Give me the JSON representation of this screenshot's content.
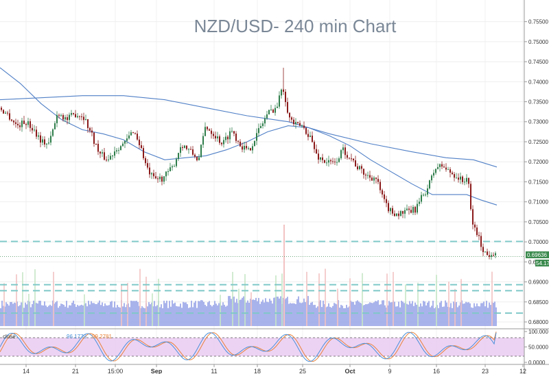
{
  "chart_data": {
    "type": "candlestick",
    "title": "NZD/USD- 240 min Chart",
    "price_axis": {
      "range": [
        0.68,
        0.7575
      ],
      "ticks": [
        "0.75500",
        "0.75000",
        "0.74500",
        "0.74000",
        "0.73500",
        "0.73000",
        "0.72500",
        "0.72000",
        "0.71500",
        "0.71000",
        "0.70500",
        "0.70000",
        "0.69500",
        "0.69000",
        "0.68500",
        "0.68000"
      ]
    },
    "current_price": "0.69636",
    "volume_badge": "54.17",
    "x_tick_labels": [
      {
        "label": "14",
        "bold": false
      },
      {
        "label": "21",
        "bold": false
      },
      {
        "label": "15:00",
        "bold": false
      },
      {
        "label": "Sep",
        "bold": true
      },
      {
        "label": "11",
        "bold": false
      },
      {
        "label": "18",
        "bold": false
      },
      {
        "label": "25",
        "bold": false
      },
      {
        "label": "Oct",
        "bold": true
      },
      {
        "label": "9",
        "bold": false
      },
      {
        "label": "16",
        "bold": false
      },
      {
        "label": "23",
        "bold": false
      },
      {
        "label": "12",
        "bold": false
      }
    ],
    "horizontal_levels": [
      0.7001,
      0.6893,
      0.6878,
      0.6822
    ],
    "price_path": [
      [
        0,
        0.7335
      ],
      [
        12,
        0.7318
      ],
      [
        25,
        0.729
      ],
      [
        38,
        0.73
      ],
      [
        50,
        0.728
      ],
      [
        62,
        0.725
      ],
      [
        72,
        0.7245
      ],
      [
        85,
        0.7325
      ],
      [
        98,
        0.7305
      ],
      [
        110,
        0.732
      ],
      [
        122,
        0.7315
      ],
      [
        135,
        0.7265
      ],
      [
        145,
        0.722
      ],
      [
        158,
        0.7205
      ],
      [
        170,
        0.7235
      ],
      [
        182,
        0.7245
      ],
      [
        195,
        0.728
      ],
      [
        205,
        0.724
      ],
      [
        215,
        0.718
      ],
      [
        225,
        0.7155
      ],
      [
        238,
        0.716
      ],
      [
        252,
        0.7185
      ],
      [
        265,
        0.7245
      ],
      [
        278,
        0.7225
      ],
      [
        290,
        0.7205
      ],
      [
        300,
        0.729
      ],
      [
        312,
        0.727
      ],
      [
        325,
        0.7245
      ],
      [
        338,
        0.728
      ],
      [
        350,
        0.7245
      ],
      [
        362,
        0.7225
      ],
      [
        375,
        0.727
      ],
      [
        390,
        0.732
      ],
      [
        405,
        0.734
      ],
      [
        412,
        0.7395
      ],
      [
        422,
        0.731
      ],
      [
        432,
        0.729
      ],
      [
        440,
        0.729
      ],
      [
        452,
        0.7265
      ],
      [
        462,
        0.7215
      ],
      [
        475,
        0.72
      ],
      [
        488,
        0.7195
      ],
      [
        500,
        0.723
      ],
      [
        512,
        0.721
      ],
      [
        522,
        0.7185
      ],
      [
        535,
        0.7165
      ],
      [
        548,
        0.716
      ],
      [
        560,
        0.71
      ],
      [
        570,
        0.7075
      ],
      [
        582,
        0.707
      ],
      [
        595,
        0.7075
      ],
      [
        605,
        0.708
      ],
      [
        615,
        0.711
      ],
      [
        625,
        0.714
      ],
      [
        635,
        0.7185
      ],
      [
        645,
        0.719
      ],
      [
        655,
        0.7175
      ],
      [
        665,
        0.7165
      ],
      [
        675,
        0.715
      ],
      [
        682,
        0.7165
      ],
      [
        688,
        0.705
      ],
      [
        695,
        0.7025
      ],
      [
        702,
        0.699
      ],
      [
        710,
        0.6965
      ],
      [
        718,
        0.6975
      ],
      [
        724,
        0.6975
      ]
    ],
    "moving_average_fast": [
      [
        0,
        0.7435
      ],
      [
        30,
        0.7395
      ],
      [
        60,
        0.7345
      ],
      [
        90,
        0.7305
      ],
      [
        120,
        0.728
      ],
      [
        150,
        0.727
      ],
      [
        180,
        0.7255
      ],
      [
        210,
        0.7225
      ],
      [
        240,
        0.7205
      ],
      [
        270,
        0.721
      ],
      [
        300,
        0.7215
      ],
      [
        330,
        0.723
      ],
      [
        360,
        0.725
      ],
      [
        390,
        0.7275
      ],
      [
        420,
        0.729
      ],
      [
        450,
        0.7285
      ],
      [
        480,
        0.7265
      ],
      [
        510,
        0.724
      ],
      [
        540,
        0.7205
      ],
      [
        570,
        0.7175
      ],
      [
        600,
        0.7145
      ],
      [
        630,
        0.7118
      ],
      [
        660,
        0.7118
      ],
      [
        680,
        0.7118
      ],
      [
        700,
        0.7105
      ],
      [
        724,
        0.7092
      ]
    ],
    "moving_average_slow": [
      [
        0,
        0.7355
      ],
      [
        60,
        0.736
      ],
      [
        120,
        0.7365
      ],
      [
        180,
        0.7365
      ],
      [
        240,
        0.7355
      ],
      [
        300,
        0.7335
      ],
      [
        360,
        0.7315
      ],
      [
        420,
        0.73
      ],
      [
        480,
        0.727
      ],
      [
        540,
        0.7245
      ],
      [
        600,
        0.7225
      ],
      [
        650,
        0.721
      ],
      [
        690,
        0.7205
      ],
      [
        724,
        0.7187
      ]
    ],
    "oscillator": {
      "ticks": [
        "100.000",
        "50.0000",
        "0.0000"
      ],
      "range": [
        0,
        100
      ],
      "upper_band": 80,
      "lower_band": 20,
      "label": "close",
      "value_blue": "96.1779",
      "value_orange": "99.2781"
    },
    "colors": {
      "bull": "#2e7d4a",
      "bear": "#8b1a1a",
      "ma": "#4f7fc6",
      "level": "#7fc8c8",
      "volume": "#9aa6e8",
      "osc_band": "#e8c8f0",
      "osc_blue": "#4a90d9",
      "osc_orange": "#e8823a",
      "badge": "#3b8a4e",
      "title": "#7a8796"
    }
  }
}
